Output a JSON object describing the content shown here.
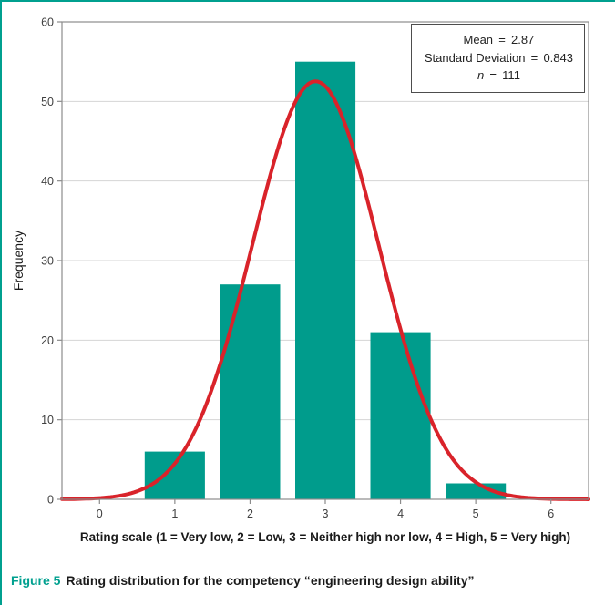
{
  "figure": {
    "caption_label": "Figure 5",
    "caption_text": "Rating distribution for the competency “engineering design ability”"
  },
  "stats_box": {
    "rows": [
      {
        "label": "Mean",
        "eq": "=",
        "value": "2.87"
      },
      {
        "label": "Standard Deviation",
        "eq": "=",
        "value": "0.843"
      },
      {
        "label": "n",
        "eq": "=",
        "value": "111"
      }
    ]
  },
  "chart_data": {
    "type": "bar",
    "title": "",
    "categories": [
      1,
      2,
      3,
      4,
      5
    ],
    "values": [
      6,
      27,
      55,
      21,
      2
    ],
    "bar_width": 0.8,
    "bar_color": "#009c8c",
    "curve": {
      "type": "normal",
      "mean": 2.87,
      "sd": 0.843,
      "n": 111,
      "color": "#d9232a"
    },
    "xlabel": "Rating scale (1 = Very low, 2 = Low, 3 = Neither high nor low, 4 = High, 5 = Very high)",
    "ylabel": "Frequency",
    "xlim": [
      -0.5,
      6.5
    ],
    "ylim": [
      0,
      60
    ],
    "x_ticks": [
      0,
      1,
      2,
      3,
      4,
      5,
      6
    ],
    "y_ticks": [
      0,
      10,
      20,
      30,
      40,
      50,
      60
    ],
    "grid": "horizontal",
    "grid_color": "#d4d4d4",
    "axis_color": "#8c8c8c",
    "legend_position": "none",
    "stats_annotation": {
      "mean": "2.87",
      "sd": "0.843",
      "n": "111"
    }
  }
}
